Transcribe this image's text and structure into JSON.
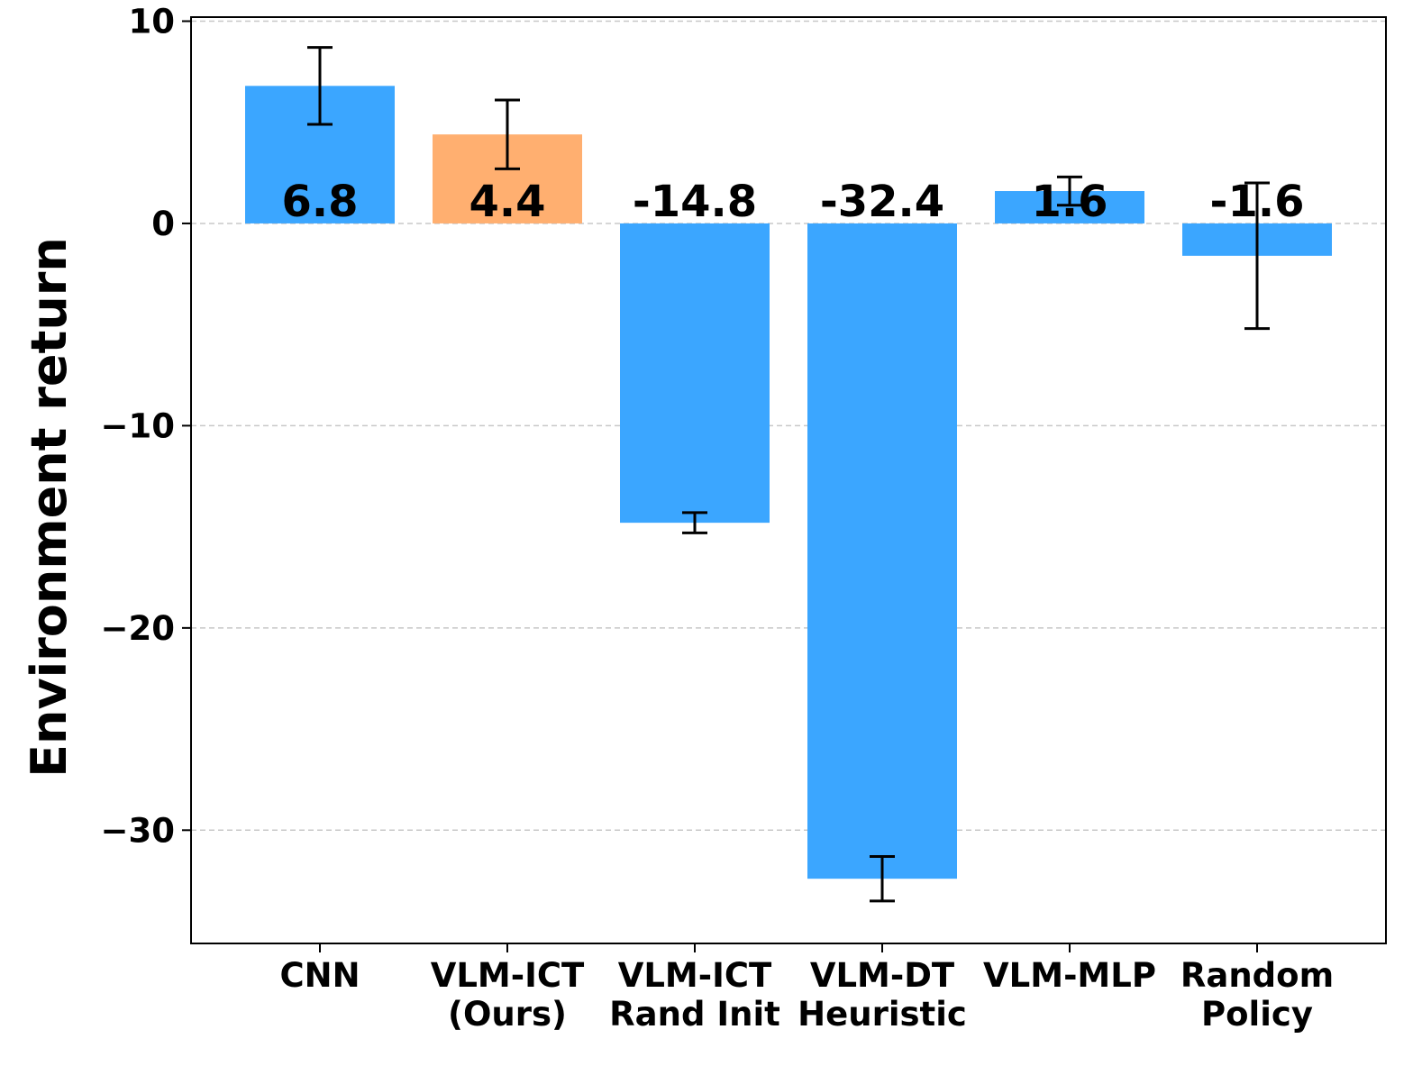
{
  "chart_data": {
    "type": "bar",
    "title": "",
    "xlabel": "",
    "ylabel": "Environment return",
    "ylim": [
      -35.6,
      10.2
    ],
    "yticks": [
      10,
      0,
      -10,
      -20,
      -30
    ],
    "ytick_labels": [
      "10",
      "0",
      "−10",
      "−20",
      "−30"
    ],
    "grid": "horizontal dashed",
    "categories": [
      [
        "CNN"
      ],
      [
        "VLM-ICT",
        "(Ours)"
      ],
      [
        "VLM-ICT",
        "Rand Init"
      ],
      [
        "VLM-DT",
        "Heuristic"
      ],
      [
        "VLM-MLP"
      ],
      [
        "Random",
        "Policy"
      ]
    ],
    "values": [
      6.8,
      4.4,
      -14.8,
      -32.4,
      1.6,
      -1.6
    ],
    "value_labels": [
      "6.8",
      "4.4",
      "-14.8",
      "-32.4",
      "1.6",
      "-1.6"
    ],
    "errors": [
      1.9,
      1.7,
      0.5,
      1.1,
      0.7,
      3.6
    ],
    "colors": [
      "#3ba6ff",
      "#ffaf70",
      "#3ba6ff",
      "#3ba6ff",
      "#3ba6ff",
      "#3ba6ff"
    ]
  }
}
